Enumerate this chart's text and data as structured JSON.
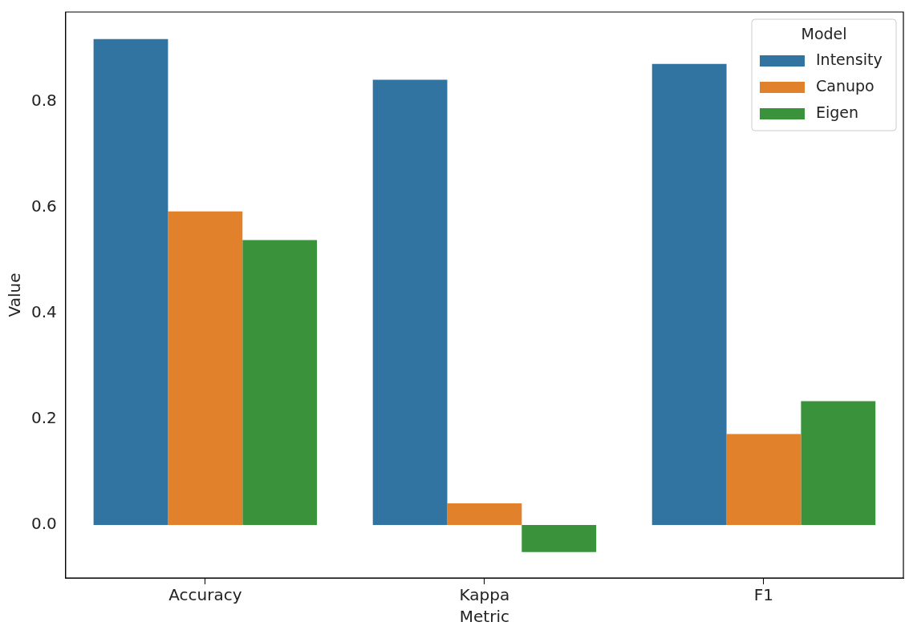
{
  "chart_data": {
    "type": "bar",
    "xlabel": "Metric",
    "ylabel": "Value",
    "legend_title": "Model",
    "categories": [
      "Accuracy",
      "Kappa",
      "F1"
    ],
    "series": [
      {
        "name": "Intensity",
        "color": "#3274a1",
        "values": [
          0.919,
          0.842,
          0.872
        ]
      },
      {
        "name": "Canupo",
        "color": "#e1812c",
        "values": [
          0.593,
          0.041,
          0.172
        ]
      },
      {
        "name": "Eigen",
        "color": "#3a923a",
        "values": [
          0.539,
          -0.051,
          0.234
        ]
      }
    ],
    "ylim": [
      -0.1,
      0.97
    ],
    "yticks": [
      {
        "value": 0,
        "label": "0.0"
      },
      {
        "value": 0.2,
        "label": "0.2"
      },
      {
        "value": 0.4,
        "label": "0.4"
      },
      {
        "value": 0.6,
        "label": "0.6"
      },
      {
        "value": 0.8,
        "label": "0.8"
      }
    ],
    "grid": false,
    "legend": "top right"
  }
}
